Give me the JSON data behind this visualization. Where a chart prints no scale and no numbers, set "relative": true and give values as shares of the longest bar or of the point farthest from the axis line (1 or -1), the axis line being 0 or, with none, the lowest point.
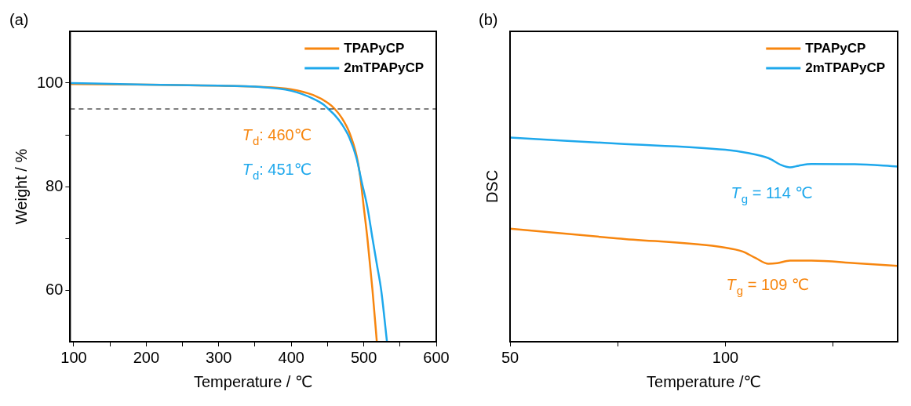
{
  "chart_data": [
    {
      "type": "line",
      "title": "(a)",
      "xlabel": "Temperature / ℃",
      "ylabel": "Weight / %",
      "xlim": [
        95,
        600
      ],
      "xticks": [
        100,
        {
          "value": 150,
          "label": null
        },
        200,
        {
          "value": 250,
          "label": null
        },
        300,
        {
          "value": 350,
          "label": null
        },
        400,
        {
          "value": 450,
          "label": null
        },
        500,
        {
          "value": 550,
          "label": null
        },
        600
      ],
      "ylim": [
        50,
        110
      ],
      "yticks": [
        60,
        {
          "value": 70,
          "label": null
        },
        80,
        {
          "value": 90,
          "label": null
        },
        100
      ],
      "grid": false,
      "legend": "top right",
      "marker": "none",
      "line_style": "solid",
      "ref_lines": [
        {
          "axis": "y",
          "value": 95,
          "color": "#000000",
          "line_style": "dashed"
        }
      ],
      "annotations": [
        "T$_{d}$: 460℃",
        "T$_{d}$: 451℃"
      ],
      "series": [
        {
          "name": "TPAPyCP",
          "color": "#f7860f",
          "x": [
            96,
            200,
            300,
            350,
            400,
            430,
            450,
            460,
            470,
            480,
            490,
            495,
            500,
            505,
            512,
            518
          ],
          "values": [
            99.8,
            99.7,
            99.5,
            99.3,
            98.8,
            97.7,
            96.2,
            95,
            93.2,
            90.5,
            86,
            82,
            76,
            70,
            60,
            50
          ]
        },
        {
          "name": "2mTPAPyCP",
          "color": "#1ea8ec",
          "x": [
            96,
            200,
            300,
            350,
            400,
            430,
            445,
            451,
            460,
            470,
            480,
            490,
            497,
            505,
            512,
            518,
            524,
            532
          ],
          "values": [
            100,
            99.7,
            99.5,
            99.3,
            98.5,
            97,
            95.8,
            95,
            93.8,
            92,
            89.5,
            85.5,
            81,
            76,
            70,
            65,
            60,
            50
          ]
        }
      ]
    },
    {
      "type": "line",
      "title": "(b)",
      "xlabel": "Temperature /℃",
      "ylabel": "DSC",
      "relative": true,
      "xlim": [
        50,
        140
      ],
      "xticks": [
        50,
        {
          "value": 75,
          "label": null
        },
        100,
        {
          "value": 125,
          "label": null
        }
      ],
      "grid": false,
      "legend": "top right",
      "marker": "none",
      "line_style": "solid",
      "annotations": [
        "T$_{g}$ = 114 ℃",
        "T$_{g}$ = 109 ℃"
      ],
      "series": [
        {
          "name": "TPAPyCP",
          "color": "#f7860f",
          "x": [
            50,
            75,
            100,
            104,
            107,
            110,
            112,
            115,
            120,
            130,
            140
          ],
          "values": [
            0.554,
            0.506,
            0.461,
            0.442,
            0.41,
            0.382,
            0.385,
            0.397,
            0.397,
            0.385,
            0.371
          ]
        },
        {
          "name": "2mTPAPyCP",
          "color": "#1ea8ec",
          "x": [
            50,
            75,
            100,
            105,
            110,
            113,
            115,
            117,
            120,
            130,
            140
          ],
          "values": [
            1.0,
            0.97,
            0.94,
            0.925,
            0.899,
            0.865,
            0.854,
            0.862,
            0.87,
            0.869,
            0.858
          ]
        }
      ]
    }
  ]
}
